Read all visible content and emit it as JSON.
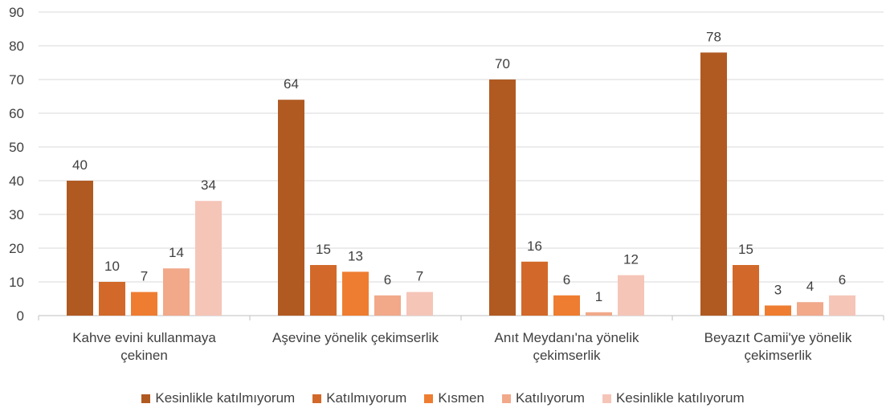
{
  "chart_data": {
    "type": "bar",
    "categories": [
      "Kahve evini kullanmaya çekinen",
      "Aşevine yönelik çekimserlik",
      "Anıt Meydanı'na yönelik çekimserlik",
      "Beyazıt Camii'ye yönelik çekimserlik"
    ],
    "series": [
      {
        "name": "Kesinlikle katılmıyorum",
        "color": "#b05a22",
        "values": [
          40,
          64,
          70,
          78
        ]
      },
      {
        "name": "Katılmıyorum",
        "color": "#d2692a",
        "values": [
          10,
          15,
          16,
          15
        ]
      },
      {
        "name": "Kısmen",
        "color": "#ee7d31",
        "values": [
          7,
          13,
          6,
          3
        ]
      },
      {
        "name": "Katılıyorum",
        "color": "#f1a98a",
        "values": [
          14,
          6,
          1,
          4
        ]
      },
      {
        "name": "Kesinlikle katılıyorum",
        "color": "#f5c5b8",
        "values": [
          34,
          7,
          12,
          6
        ]
      }
    ],
    "ylim": [
      0,
      90
    ],
    "yticks": [
      0,
      10,
      20,
      30,
      40,
      50,
      60,
      70,
      80,
      90
    ],
    "grid": true,
    "legend": "bottom"
  }
}
